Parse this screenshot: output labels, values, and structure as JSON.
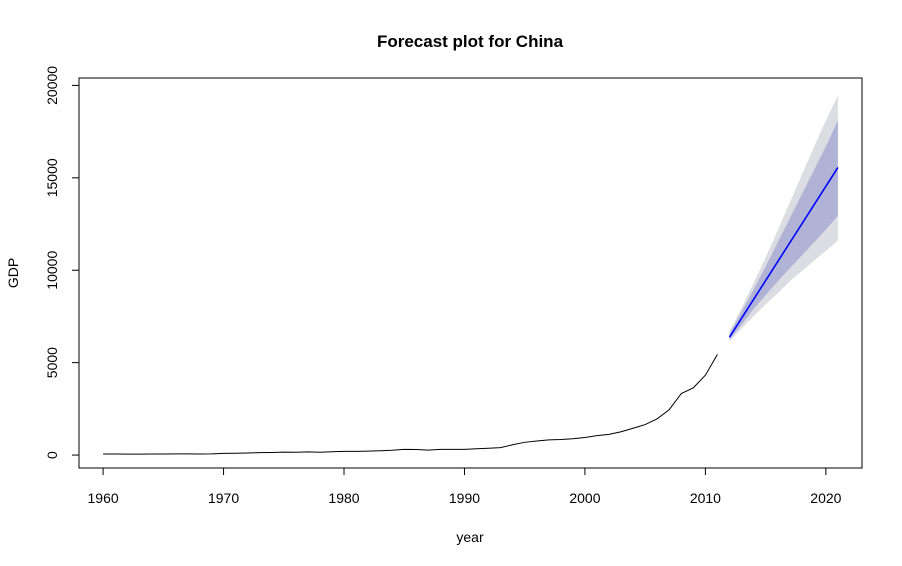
{
  "chart_data": {
    "type": "line",
    "title": "Forecast plot for China",
    "xlabel": "year",
    "ylabel": "GDP",
    "xlim": [
      1958,
      2023
    ],
    "ylim": [
      -700,
      20400
    ],
    "xticks": [
      1960,
      1970,
      1980,
      1990,
      2000,
      2010,
      2020
    ],
    "yticks": [
      0,
      5000,
      10000,
      15000,
      20000
    ],
    "x_tick_labels": [
      "1960",
      "1970",
      "1980",
      "1990",
      "2000",
      "2010",
      "2020"
    ],
    "y_tick_labels": [
      "0",
      "5000",
      "10000",
      "15000",
      "20000"
    ],
    "grid": false,
    "legend": "none",
    "colors": {
      "history": "#000000",
      "forecast": "#0000ff",
      "band80": "#b0b3d5",
      "band95": "#dcdce3"
    },
    "series": [
      {
        "role": "history",
        "x": [
          1960,
          1961,
          1962,
          1963,
          1964,
          1965,
          1966,
          1967,
          1968,
          1969,
          1970,
          1971,
          1972,
          1973,
          1974,
          1975,
          1976,
          1977,
          1978,
          1979,
          1980,
          1981,
          1982,
          1983,
          1984,
          1985,
          1986,
          1987,
          1988,
          1989,
          1990,
          1991,
          1992,
          1993,
          1994,
          1995,
          1996,
          1997,
          1998,
          1999,
          2000,
          2001,
          2002,
          2003,
          2004,
          2005,
          2006,
          2007,
          2008,
          2009,
          2010,
          2011
        ],
        "y": [
          60,
          55,
          50,
          50,
          55,
          60,
          65,
          65,
          60,
          65,
          90,
          100,
          110,
          130,
          140,
          160,
          155,
          170,
          150,
          180,
          200,
          200,
          210,
          230,
          260,
          310,
          300,
          270,
          310,
          310,
          310,
          340,
          370,
          400,
          560,
          690,
          760,
          820,
          840,
          880,
          950,
          1050,
          1120,
          1260,
          1450,
          1650,
          1960,
          2460,
          3330,
          3640,
          4320,
          5450
        ]
      },
      {
        "role": "forecast",
        "x": [
          2012,
          2013,
          2014,
          2015,
          2016,
          2017,
          2018,
          2019,
          2020,
          2021
        ],
        "y": [
          6380,
          7400,
          8420,
          9440,
          10460,
          11480,
          12500,
          13520,
          14540,
          15560
        ]
      },
      {
        "role": "lo80",
        "x": [
          2012,
          2013,
          2014,
          2015,
          2016,
          2017,
          2018,
          2019,
          2020,
          2021
        ],
        "y": [
          6250,
          7050,
          7900,
          8650,
          9400,
          10100,
          10800,
          11500,
          12200,
          12950
        ]
      },
      {
        "role": "hi80",
        "x": [
          2012,
          2013,
          2014,
          2015,
          2016,
          2017,
          2018,
          2019,
          2020,
          2021
        ],
        "y": [
          6550,
          7750,
          8950,
          10200,
          11500,
          12800,
          14100,
          15400,
          16700,
          18100
        ]
      },
      {
        "role": "lo95",
        "x": [
          2012,
          2013,
          2014,
          2015,
          2016,
          2017,
          2018,
          2019,
          2020,
          2021
        ],
        "y": [
          6150,
          6850,
          7500,
          8150,
          8750,
          9400,
          9950,
          10500,
          11050,
          11600
        ]
      },
      {
        "role": "hi95",
        "x": [
          2012,
          2013,
          2014,
          2015,
          2016,
          2017,
          2018,
          2019,
          2020,
          2021
        ],
        "y": [
          6650,
          7950,
          9300,
          10700,
          12150,
          13650,
          15150,
          16650,
          18100,
          19450
        ]
      }
    ]
  }
}
